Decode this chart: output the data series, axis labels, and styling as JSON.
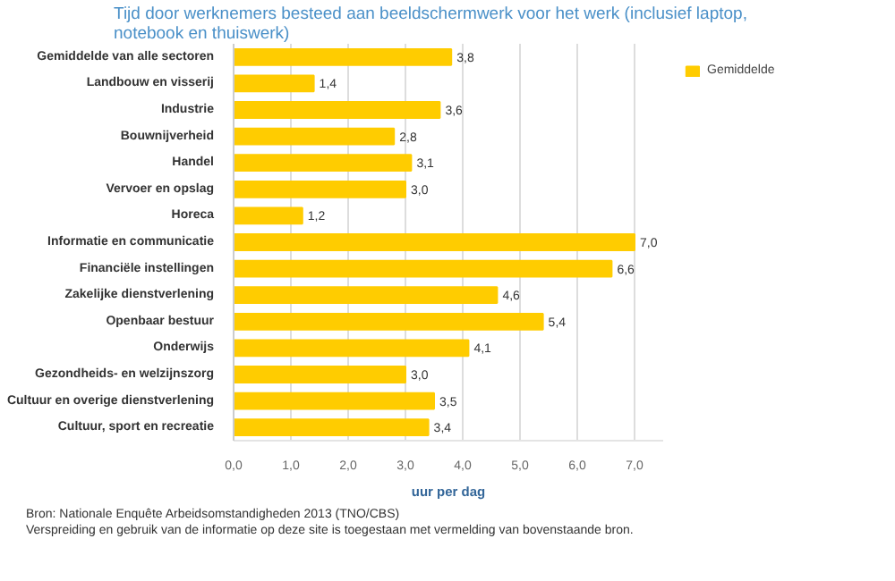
{
  "chart_data": {
    "type": "bar",
    "orientation": "horizontal",
    "title": "Tijd door werknemers besteed aan beeldschermwerk voor het werk (inclusief laptop, notebook en thuiswerk)",
    "xlabel": "uur per dag",
    "categories": [
      "Gemiddelde van alle sectoren",
      "Landbouw en visserij",
      "Industrie",
      "Bouwnijverheid",
      "Handel",
      "Vervoer en opslag",
      "Horeca",
      "Informatie en communicatie",
      "Financiële instellingen",
      "Zakelijke dienstverlening",
      "Openbaar bestuur",
      "Onderwijs",
      "Gezondheids- en welzijnszorg",
      "Cultuur en overige dienstverlening",
      "Cultuur, sport en recreatie"
    ],
    "series": [
      {
        "name": "Gemiddelde",
        "color": "#ffcc00",
        "values": [
          3.8,
          1.4,
          3.6,
          2.8,
          3.1,
          3.0,
          1.2,
          7.0,
          6.6,
          4.6,
          5.4,
          4.1,
          3.0,
          3.5,
          3.4
        ],
        "value_labels": [
          "3,8",
          "1,4",
          "3,6",
          "2,8",
          "3,1",
          "3,0",
          "1,2",
          "7,0",
          "6,6",
          "4,6",
          "5,4",
          "4,1",
          "3,0",
          "3,5",
          "3,4"
        ]
      }
    ],
    "xlim": [
      0,
      7.5
    ],
    "xticks": [
      {
        "value": 0,
        "label": "0,0"
      },
      {
        "value": 1,
        "label": "1,0"
      },
      {
        "value": 2,
        "label": "2,0"
      },
      {
        "value": 3,
        "label": "3,0"
      },
      {
        "value": 4,
        "label": "4,0"
      },
      {
        "value": 5,
        "label": "5,0"
      },
      {
        "value": 6,
        "label": "6,0"
      },
      {
        "value": 7,
        "label": "7,0"
      }
    ],
    "grid": "x",
    "legend": "right",
    "annotations": [
      "Bron: Nationale Enquête Arbeidsomstandigheden 2013 (TNO/CBS)",
      "Verspreiding en gebruik van de informatie op deze site is toegestaan met vermelding van bovenstaande bron."
    ]
  }
}
